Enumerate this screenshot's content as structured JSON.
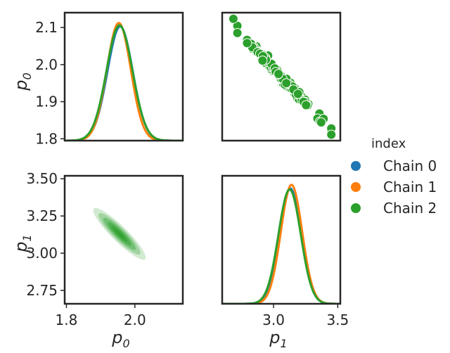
{
  "chart_data": {
    "type": "pairplot",
    "variables": [
      "p0",
      "p1"
    ],
    "axis_labels": {
      "p0": "p",
      "p0_sub": "0",
      "p1": "p",
      "p1_sub": "1"
    },
    "ranges": {
      "p0": [
        1.795,
        2.14
      ],
      "p1": [
        2.66,
        3.52
      ],
      "p1_x": [
        2.6,
        3.52
      ]
    },
    "ticks": {
      "p0_y": [
        "1.8",
        "1.9",
        "2.0",
        "2.1"
      ],
      "p0_x": [
        "1.8",
        "2.0"
      ],
      "p1_y": [
        "2.75",
        "3.00",
        "3.25",
        "3.50"
      ],
      "p1_x": [
        "3.0",
        "3.5"
      ]
    },
    "tick_values": {
      "p0_y": [
        1.8,
        1.9,
        2.0,
        2.1
      ],
      "p0_x": [
        1.8,
        2.0
      ],
      "p1_y": [
        2.75,
        3.0,
        3.25,
        3.5
      ],
      "p1_x": [
        3.0,
        3.5
      ]
    },
    "legend": {
      "title": "index",
      "placement": "right",
      "entries": [
        {
          "label": "Chain 0",
          "color": "#1f77b4"
        },
        {
          "label": "Chain 1",
          "color": "#ff7f0e"
        },
        {
          "label": "Chain 2",
          "color": "#2ca02c"
        }
      ]
    },
    "kde_p0": {
      "mean": 1.955,
      "sd": 0.036,
      "peak_density": 1.0,
      "chains": [
        {
          "name": "Chain 0",
          "color": "#1f77b4",
          "mean": 1.957,
          "sd": 0.037,
          "peak": 0.97
        },
        {
          "name": "Chain 1",
          "color": "#ff7f0e",
          "mean": 1.953,
          "sd": 0.035,
          "peak": 1.0
        },
        {
          "name": "Chain 2",
          "color": "#2ca02c",
          "mean": 1.955,
          "sd": 0.038,
          "peak": 0.98
        }
      ]
    },
    "kde_p1": {
      "chains": [
        {
          "name": "Chain 0",
          "color": "#1f77b4",
          "mean": 3.13,
          "sd": 0.085,
          "peak": 0.97
        },
        {
          "name": "Chain 1",
          "color": "#ff7f0e",
          "mean": 3.14,
          "sd": 0.083,
          "peak": 1.0
        },
        {
          "name": "Chain 2",
          "color": "#2ca02c",
          "mean": 3.125,
          "sd": 0.087,
          "peak": 0.96
        }
      ]
    },
    "scatter_p1_vs_p0": {
      "x_range": [
        2.65,
        3.45
      ],
      "y_from": 2.12,
      "y_to": 1.82,
      "color": "#2ca02c"
    },
    "contour_p0_vs_p1": {
      "center": [
        1.955,
        3.13
      ],
      "color": "#2ca02c",
      "extent_x": [
        1.88,
        2.03
      ],
      "extent_y": [
        2.96,
        3.3
      ]
    }
  }
}
